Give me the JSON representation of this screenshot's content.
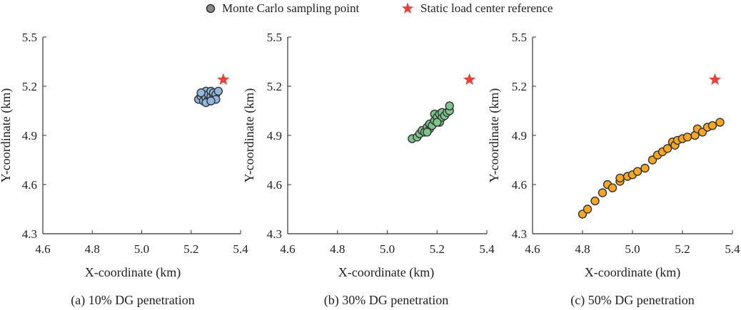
{
  "legend": {
    "sampling_label": "Monte Carlo sampling point",
    "reference_label": "Static load center reference",
    "sampling_marker": "circle",
    "reference_marker": "star",
    "reference_color": "#e8413c"
  },
  "chart_data": [
    {
      "type": "scatter",
      "caption": "(a) 10% DG penetration",
      "xlabel": "X-coordinate (km)",
      "ylabel": "Y-coordinate (km)",
      "xlim": [
        4.6,
        5.4
      ],
      "ylim": [
        4.3,
        5.5
      ],
      "xticks": [
        "4.6",
        "4.8",
        "5.0",
        "5.2",
        "5.4"
      ],
      "yticks": [
        "4.3",
        "4.6",
        "4.9",
        "5.2",
        "5.5"
      ],
      "grid": false,
      "point_color": "#8fb8e0",
      "reference": {
        "x": 5.33,
        "y": 5.24
      },
      "points": [
        {
          "x": 5.23,
          "y": 5.12
        },
        {
          "x": 5.24,
          "y": 5.14
        },
        {
          "x": 5.25,
          "y": 5.15
        },
        {
          "x": 5.25,
          "y": 5.11
        },
        {
          "x": 5.26,
          "y": 5.13
        },
        {
          "x": 5.26,
          "y": 5.17
        },
        {
          "x": 5.27,
          "y": 5.12
        },
        {
          "x": 5.27,
          "y": 5.15
        },
        {
          "x": 5.28,
          "y": 5.14
        },
        {
          "x": 5.28,
          "y": 5.17
        },
        {
          "x": 5.29,
          "y": 5.13
        },
        {
          "x": 5.29,
          "y": 5.16
        },
        {
          "x": 5.3,
          "y": 5.15
        },
        {
          "x": 5.31,
          "y": 5.17
        },
        {
          "x": 5.3,
          "y": 5.12
        },
        {
          "x": 5.26,
          "y": 5.1
        },
        {
          "x": 5.24,
          "y": 5.16
        },
        {
          "x": 5.28,
          "y": 5.11
        }
      ]
    },
    {
      "type": "scatter",
      "caption": "(b) 30% DG penetration",
      "xlabel": "X-coordinate (km)",
      "ylabel": "Y-coordinate (km)",
      "xlim": [
        4.6,
        5.4
      ],
      "ylim": [
        4.3,
        5.5
      ],
      "xticks": [
        "4.6",
        "4.8",
        "5.0",
        "5.2",
        "5.4"
      ],
      "yticks": [
        "4.3",
        "4.6",
        "4.9",
        "5.2",
        "5.5"
      ],
      "grid": false,
      "point_color": "#7cc48a",
      "reference": {
        "x": 5.33,
        "y": 5.24
      },
      "points": [
        {
          "x": 5.1,
          "y": 4.88
        },
        {
          "x": 5.12,
          "y": 4.89
        },
        {
          "x": 5.13,
          "y": 4.91
        },
        {
          "x": 5.14,
          "y": 4.93
        },
        {
          "x": 5.15,
          "y": 4.92
        },
        {
          "x": 5.16,
          "y": 4.95
        },
        {
          "x": 5.17,
          "y": 4.94
        },
        {
          "x": 5.17,
          "y": 4.97
        },
        {
          "x": 5.18,
          "y": 4.96
        },
        {
          "x": 5.19,
          "y": 4.99
        },
        {
          "x": 5.19,
          "y": 5.03
        },
        {
          "x": 5.2,
          "y": 5.01
        },
        {
          "x": 5.21,
          "y": 4.98
        },
        {
          "x": 5.21,
          "y": 5.03
        },
        {
          "x": 5.22,
          "y": 5.01
        },
        {
          "x": 5.22,
          "y": 5.04
        },
        {
          "x": 5.23,
          "y": 5.02
        },
        {
          "x": 5.24,
          "y": 5.04
        },
        {
          "x": 5.25,
          "y": 5.05
        },
        {
          "x": 5.25,
          "y": 5.08
        },
        {
          "x": 5.2,
          "y": 4.98
        },
        {
          "x": 5.16,
          "y": 4.92
        }
      ]
    },
    {
      "type": "scatter",
      "caption": "(c) 50% DG penetration",
      "xlabel": "X-coordinate (km)",
      "ylabel": "Y-coordinate (km)",
      "xlim": [
        4.6,
        5.4
      ],
      "ylim": [
        4.3,
        5.5
      ],
      "xticks": [
        "4.6",
        "4.8",
        "5.0",
        "5.2",
        "5.4"
      ],
      "yticks": [
        "4.3",
        "4.6",
        "4.9",
        "5.2",
        "5.5"
      ],
      "grid": false,
      "point_color": "#f5a623",
      "reference": {
        "x": 5.33,
        "y": 5.24
      },
      "points": [
        {
          "x": 4.8,
          "y": 4.42
        },
        {
          "x": 4.82,
          "y": 4.45
        },
        {
          "x": 4.85,
          "y": 4.5
        },
        {
          "x": 4.88,
          "y": 4.55
        },
        {
          "x": 4.9,
          "y": 4.6
        },
        {
          "x": 4.92,
          "y": 4.58
        },
        {
          "x": 4.95,
          "y": 4.62
        },
        {
          "x": 4.95,
          "y": 4.64
        },
        {
          "x": 4.98,
          "y": 4.65
        },
        {
          "x": 5.0,
          "y": 4.66
        },
        {
          "x": 5.02,
          "y": 4.68
        },
        {
          "x": 5.05,
          "y": 4.7
        },
        {
          "x": 5.08,
          "y": 4.75
        },
        {
          "x": 5.1,
          "y": 4.78
        },
        {
          "x": 5.12,
          "y": 4.8
        },
        {
          "x": 5.14,
          "y": 4.82
        },
        {
          "x": 5.16,
          "y": 4.86
        },
        {
          "x": 5.17,
          "y": 4.84
        },
        {
          "x": 5.18,
          "y": 4.87
        },
        {
          "x": 5.2,
          "y": 4.88
        },
        {
          "x": 5.22,
          "y": 4.89
        },
        {
          "x": 5.25,
          "y": 4.9
        },
        {
          "x": 5.26,
          "y": 4.94
        },
        {
          "x": 5.28,
          "y": 4.92
        },
        {
          "x": 5.3,
          "y": 4.95
        },
        {
          "x": 5.32,
          "y": 4.96
        },
        {
          "x": 5.35,
          "y": 4.98
        }
      ]
    }
  ]
}
